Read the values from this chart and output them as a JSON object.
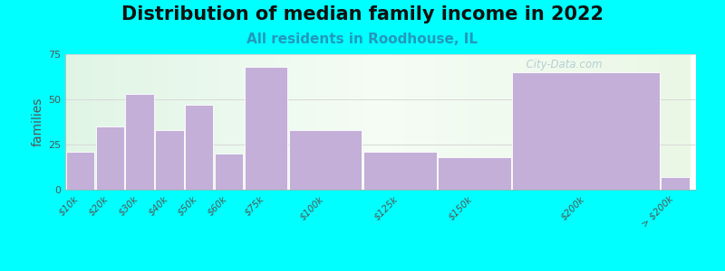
{
  "title": "Distribution of median family income in 2022",
  "subtitle": "All residents in Roodhouse, IL",
  "ylabel": "families",
  "background_outer": "#00FFFF",
  "bar_color": "#c4afd8",
  "bar_edge_color": "#ffffff",
  "categories": [
    "$10k",
    "$20k",
    "$30k",
    "$40k",
    "$50k",
    "$60k",
    "$75k",
    "$100k",
    "$125k",
    "$150k",
    "$200k",
    "> $200k"
  ],
  "values": [
    21,
    35,
    53,
    33,
    47,
    20,
    68,
    33,
    21,
    18,
    65,
    7
  ],
  "bin_lefts": [
    0,
    10,
    20,
    30,
    40,
    50,
    60,
    75,
    100,
    125,
    150,
    200
  ],
  "bin_rights": [
    10,
    20,
    30,
    40,
    50,
    60,
    75,
    100,
    125,
    150,
    200,
    210
  ],
  "ylim": [
    0,
    75
  ],
  "yticks": [
    0,
    25,
    50,
    75
  ],
  "title_fontsize": 15,
  "subtitle_fontsize": 11,
  "ylabel_fontsize": 10,
  "tick_fontsize": 7.5,
  "watermark_text": "  City-Data.com",
  "watermark_color": "#aac8d0"
}
